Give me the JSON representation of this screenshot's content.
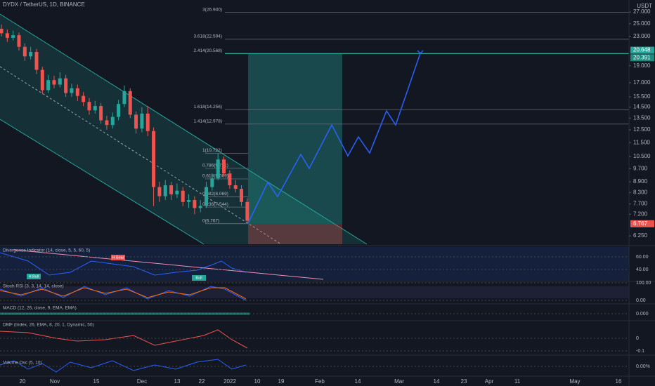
{
  "chart_data": {
    "type": "candlestick",
    "title": "DYDX / TetherUS, 1D, BINANCE",
    "unit": "USDT",
    "log_scale": true,
    "ylim": [
      6.0,
      29.2
    ],
    "yticks": [
      {
        "value": 27,
        "label": "27.000"
      },
      {
        "value": 25,
        "label": "25.000"
      },
      {
        "value": 23,
        "label": "23.000"
      },
      {
        "value": 19,
        "label": "19.000"
      },
      {
        "value": 17,
        "label": "17.000"
      },
      {
        "value": 15.5,
        "label": "15.500"
      },
      {
        "value": 14.5,
        "label": "14.500"
      },
      {
        "value": 13.5,
        "label": "13.500"
      },
      {
        "value": 12.5,
        "label": "12.500"
      },
      {
        "value": 11.5,
        "label": "11.500"
      },
      {
        "value": 10.5,
        "label": "10.500"
      },
      {
        "value": 9.7,
        "label": "9.700"
      },
      {
        "value": 8.9,
        "label": "8.900"
      },
      {
        "value": 8.3,
        "label": "8.300"
      },
      {
        "value": 7.7,
        "label": "7.700"
      },
      {
        "value": 7.2,
        "label": "7.200"
      },
      {
        "value": 6.25,
        "label": "6.250"
      }
    ],
    "price_badges": [
      {
        "value": 20.648,
        "label": "20.648",
        "color": "#26a69a"
      },
      {
        "value": 20.391,
        "label": "20.391",
        "color": "#1f8a80"
      },
      {
        "value": 6.767,
        "label": "6.767",
        "color": "#ef5350"
      }
    ],
    "fib_levels": [
      {
        "value": 26.94,
        "label": "3(26.940)"
      },
      {
        "value": 22.594,
        "label": "3.618(22.594)"
      },
      {
        "value": 20.568,
        "label": "2.414(20.568)"
      },
      {
        "value": 14.256,
        "label": "1.618(14.256)"
      },
      {
        "value": 12.978,
        "label": "1.414(12.978)"
      },
      {
        "value": 10.722,
        "label": "1(10.722)"
      },
      {
        "value": 9.721,
        "label": "0.786(9.721)"
      },
      {
        "value": 9.069,
        "label": "0.618(9.069)"
      },
      {
        "value": 8.069,
        "label": "0.382(8.069)"
      },
      {
        "value": 7.544,
        "label": "0.236(7.544)"
      },
      {
        "value": 6.767,
        "label": "0(6.767)"
      }
    ],
    "up_color": "#26a69a",
    "down_color": "#ef5350",
    "candles": [
      [
        24.2,
        24.9,
        23.0,
        23.5
      ],
      [
        23.5,
        24.1,
        22.2,
        22.8
      ],
      [
        22.8,
        23.9,
        22.4,
        23.2
      ],
      [
        23.2,
        23.6,
        21.0,
        21.5
      ],
      [
        21.5,
        22.0,
        19.6,
        20.2
      ],
      [
        20.2,
        21.5,
        19.8,
        20.8
      ],
      [
        20.8,
        21.2,
        18.0,
        18.5
      ],
      [
        18.5,
        18.9,
        15.8,
        16.2
      ],
      [
        16.2,
        17.9,
        15.9,
        17.3
      ],
      [
        17.3,
        17.8,
        16.4,
        16.8
      ],
      [
        16.8,
        18.2,
        16.5,
        17.5
      ],
      [
        17.5,
        17.9,
        15.5,
        15.9
      ],
      [
        15.9,
        16.9,
        15.5,
        16.4
      ],
      [
        16.4,
        16.8,
        15.1,
        15.6
      ],
      [
        15.6,
        16.0,
        14.6,
        15.0
      ],
      [
        15.0,
        15.4,
        13.8,
        14.2
      ],
      [
        14.2,
        15.1,
        13.9,
        14.6
      ],
      [
        14.6,
        14.9,
        13.0,
        13.3
      ],
      [
        13.3,
        13.7,
        12.5,
        12.9
      ],
      [
        12.9,
        14.0,
        12.6,
        13.6
      ],
      [
        13.6,
        15.2,
        13.3,
        14.8
      ],
      [
        14.8,
        16.7,
        14.5,
        16.1
      ],
      [
        16.1,
        16.4,
        13.5,
        13.8
      ],
      [
        13.8,
        14.1,
        12.2,
        12.6
      ],
      [
        12.6,
        14.5,
        12.3,
        13.9
      ],
      [
        13.9,
        14.6,
        12.0,
        12.4
      ],
      [
        12.4,
        12.7,
        7.6,
        8.6
      ],
      [
        8.6,
        8.9,
        7.8,
        8.1
      ],
      [
        8.1,
        9.0,
        7.9,
        8.7
      ],
      [
        8.7,
        8.9,
        7.9,
        8.2
      ],
      [
        8.2,
        8.8,
        8.0,
        8.4
      ],
      [
        8.4,
        8.6,
        7.6,
        7.8
      ],
      [
        7.8,
        8.2,
        7.5,
        7.9
      ],
      [
        7.9,
        8.1,
        7.2,
        7.5
      ],
      [
        7.5,
        7.9,
        7.3,
        7.6
      ],
      [
        7.6,
        8.9,
        7.5,
        8.6
      ],
      [
        8.6,
        9.4,
        8.4,
        9.1
      ],
      [
        9.1,
        10.7,
        9.0,
        10.3
      ],
      [
        10.3,
        10.5,
        9.2,
        9.4
      ],
      [
        9.4,
        9.6,
        8.5,
        8.7
      ],
      [
        8.7,
        9.0,
        8.3,
        8.5
      ],
      [
        8.5,
        8.7,
        7.6,
        7.8
      ],
      [
        7.8,
        8.0,
        6.8,
        6.9
      ]
    ],
    "time_labels": [
      "20",
      "Nov",
      "15",
      "Dec",
      "13",
      "22",
      "2022",
      "10",
      "19",
      "Feb",
      "14",
      "Mar",
      "14",
      "23",
      "Apr",
      "11",
      "May",
      "16"
    ],
    "indicators": [
      {
        "name": "Divergence Indicator (14, close, 5, 5, 60, 5)",
        "ticks": [
          "60.00",
          "40.00"
        ],
        "tags": [
          "H Bear",
          "H Bull",
          "Bull"
        ]
      },
      {
        "name": "Stoch RSI (3, 3, 14, 14, close)",
        "ticks": [
          "100.00",
          "0.00"
        ]
      },
      {
        "name": "MACD (12, 26, close, 9, EMA, EMA)",
        "ticks": [
          "0.000"
        ]
      },
      {
        "name": "DMF (Index, 26, EMA, 8, 20, 1, Dynamic, 50)",
        "ticks": [
          "0",
          "-0.1"
        ]
      },
      {
        "name": "Volume Osc (5, 10)",
        "ticks": [
          "0.00%"
        ]
      }
    ]
  }
}
